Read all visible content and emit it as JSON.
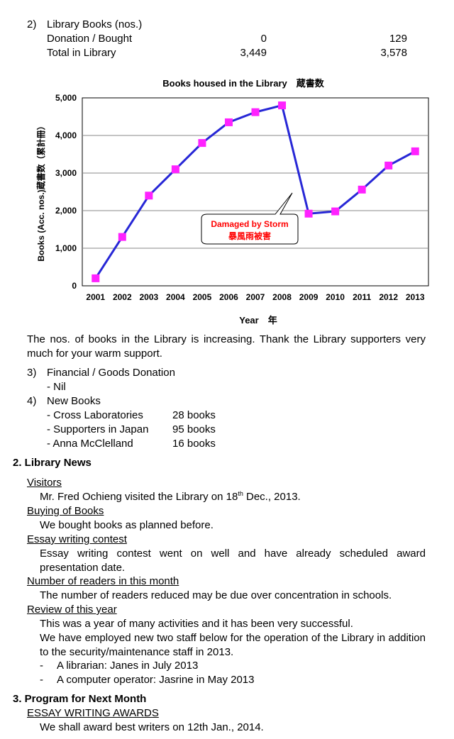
{
  "library_books": {
    "num": "2)",
    "heading": "Library Books (nos.)",
    "rows": [
      {
        "label": "Donation / Bought",
        "v1": "0",
        "v2": "129"
      },
      {
        "label": "Total in Library",
        "v1": "3,449",
        "v2": "3,578"
      }
    ]
  },
  "chart_data": {
    "type": "line",
    "title": "Books housed in the Library　蔵書数",
    "xlabel": "Year　年",
    "ylabel": "Books (Acc. nos.)蔵書数（累計冊）",
    "categories": [
      "2001",
      "2002",
      "2003",
      "2004",
      "2005",
      "2006",
      "2007",
      "2008",
      "2009",
      "2010",
      "2011",
      "2012",
      "2013"
    ],
    "values": [
      200,
      1300,
      2400,
      3100,
      3800,
      4350,
      4620,
      4800,
      1920,
      1980,
      2560,
      3200,
      3578
    ],
    "ylim": [
      0,
      5000
    ],
    "yticks": [
      "0",
      "1,000",
      "2,000",
      "3,000",
      "4,000",
      "5,000"
    ],
    "grid": true,
    "line_color": "#2727d6",
    "marker_color": "#ff22ff",
    "annotation": {
      "line1": "Damaged by Storm",
      "line2": "暴風雨被害",
      "color": "#ff0000"
    }
  },
  "chart_caption": "The nos. of books in the Library is increasing. Thank the Library supporters very much for your warm support.",
  "financial": {
    "num": "3)",
    "heading": "Financial / Goods Donation",
    "item": "- Nil"
  },
  "new_books": {
    "num": "4)",
    "heading": "New Books",
    "items": [
      {
        "name": "- Cross Laboratories",
        "count": "28 books"
      },
      {
        "name": "- Supporters in Japan",
        "count": "95 books"
      },
      {
        "name": "- Anna McClelland",
        "count": "16 books"
      }
    ]
  },
  "news": {
    "heading": "2.  Library News",
    "visitors_title": "Visitors",
    "visitors_pre": "Mr. Fred Ochieng visited the Library on 18",
    "visitors_sup": "th",
    "visitors_post": " Dec., 2013.",
    "buying_title": "Buying of Books",
    "buying_text": "We bought books as planned before.",
    "essay_title": "Essay writing contest",
    "essay_text": "Essay writing contest went on well and have already scheduled award presentation date.",
    "readers_title": "Number of readers in this month",
    "readers_text": "The number of readers reduced may be due over concentration in schools.",
    "review_title": "Review of this year",
    "review_text1": "This was a year of many activities and it has been very successful.",
    "review_text2": "We have employed new two staff below for the operation of the Library in addition to the security/maintenance staff in 2013.",
    "staff": [
      "A librarian: Janes in July 2013",
      "A computer operator: Jasrine in May 2013"
    ]
  },
  "program": {
    "heading": "3.  Program for Next Month",
    "awards_title": "ESSAY WRITING AWARDS",
    "awards_text": "We shall award best writers on 12th Jan., 2014."
  }
}
